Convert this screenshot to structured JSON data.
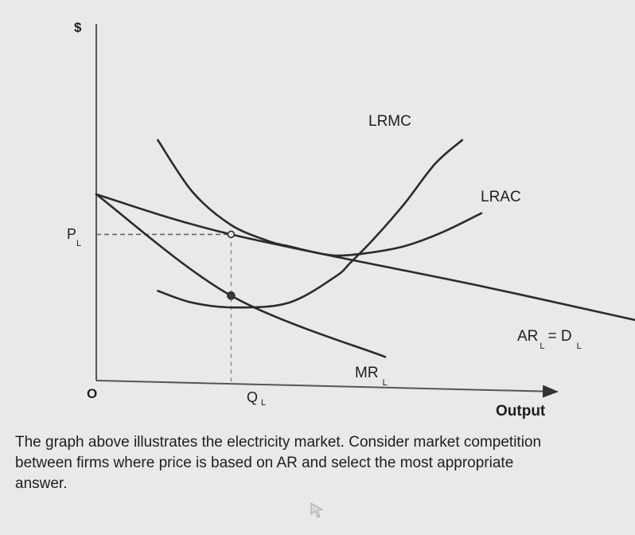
{
  "chart_data": {
    "type": "line",
    "ylabel": "$",
    "xlabel": "Output",
    "origin_label": "O",
    "ylim": [
      0,
      100
    ],
    "xlim": [
      0,
      100
    ],
    "series": [
      {
        "name": "LRMC",
        "x": [
          16,
          25,
          36,
          50,
          62,
          66,
          72,
          80,
          88,
          95
        ],
        "y": [
          36,
          31,
          29,
          31,
          42,
          48,
          58,
          73,
          90,
          100
        ]
      },
      {
        "name": "LRAC",
        "x": [
          16,
          25,
          35,
          45,
          50,
          55,
          62,
          70,
          80,
          90,
          100
        ],
        "y": [
          100,
          78,
          64,
          57,
          55,
          53,
          51,
          52,
          55,
          61,
          69
        ]
      },
      {
        "name": "AR",
        "subscript": "L",
        "x": [
          0,
          35,
          100,
          150
        ],
        "y": [
          77,
          60,
          38,
          20
        ]
      },
      {
        "name": "MR",
        "subscript": "L",
        "x": [
          0,
          35,
          75
        ],
        "y": [
          77,
          34,
          8
        ]
      }
    ],
    "demand_label": {
      "prefix": "AR",
      "sub1": "L",
      "eq": "= D",
      "sub2": "L"
    },
    "annotations": [
      {
        "label": "P",
        "subscript": "L",
        "axis": "y",
        "value": 60
      },
      {
        "label": "Q",
        "subscript": "L",
        "axis": "x",
        "value": 35
      }
    ],
    "points": [
      {
        "x": 35,
        "y": 60,
        "kind": "open"
      },
      {
        "x": 35,
        "y": 34,
        "kind": "filled"
      }
    ]
  },
  "question": {
    "lines": [
      "The graph above illustrates the electricity market. Consider market competition",
      "between firms where price is based on AR and select the most appropriate",
      "answer."
    ]
  }
}
